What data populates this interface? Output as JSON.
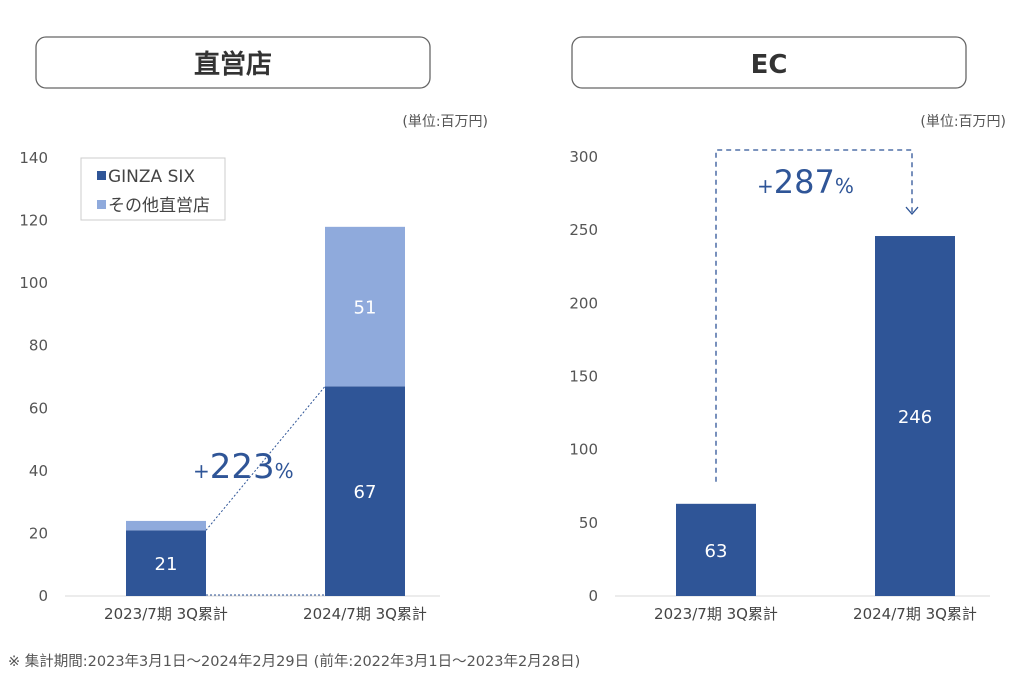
{
  "footnote": "※ 集計期間:2023年3月1日～2024年2月29日 (前年:2022年3月1日～2023年2月28日)",
  "colors": {
    "ginza": "#2f5597",
    "other": "#8faadc",
    "accent": "#2f5597"
  },
  "chart_data": [
    {
      "type": "bar",
      "stacked": true,
      "title": "直営店",
      "unit_label": "(単位:百万円)",
      "categories": [
        "2023/7期 3Q累計",
        "2024/7期 3Q累計"
      ],
      "series": [
        {
          "name": "GINZA SIX",
          "values": [
            21,
            67
          ],
          "labels": [
            "21",
            "67"
          ]
        },
        {
          "name": "その他直営店",
          "values": [
            3,
            51
          ],
          "labels": [
            "",
            "51"
          ]
        }
      ],
      "ylim": [
        0,
        140
      ],
      "yticks": [
        0,
        20,
        40,
        60,
        80,
        100,
        120,
        140
      ],
      "legend": "top-left",
      "grid": false,
      "annotation": {
        "prefix": "+",
        "value": "223",
        "suffix": "%"
      }
    },
    {
      "type": "bar",
      "title": "EC",
      "unit_label": "(単位:百万円)",
      "categories": [
        "2023/7期 3Q累計",
        "2024/7期 3Q累計"
      ],
      "values": [
        63,
        246
      ],
      "labels": [
        "63",
        "246"
      ],
      "ylim": [
        0,
        300
      ],
      "yticks": [
        0,
        50,
        100,
        150,
        200,
        250,
        300
      ],
      "grid": false,
      "annotation": {
        "prefix": "+",
        "value": "287",
        "suffix": "%"
      }
    }
  ]
}
